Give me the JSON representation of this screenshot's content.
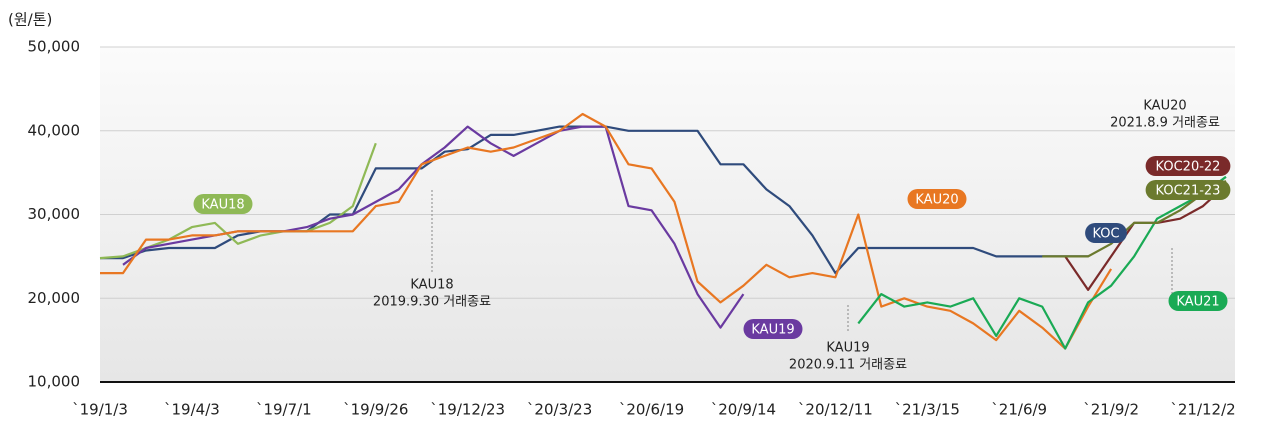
{
  "chart_data": {
    "type": "line",
    "y_unit_label": "(원/톤)",
    "categories": [
      "`19/1/3",
      null,
      null,
      null,
      "`19/4/3",
      null,
      null,
      null,
      "`19/7/1",
      null,
      null,
      null,
      "`19/9/26",
      null,
      null,
      null,
      "`19/12/23",
      null,
      null,
      null,
      "`20/3/23",
      null,
      null,
      null,
      "`20/6/19",
      null,
      null,
      null,
      "`20/9/14",
      null,
      null,
      null,
      "`20/12/11",
      null,
      null,
      null,
      "`21/3/15",
      null,
      null,
      null,
      "`21/6/9",
      null,
      null,
      null,
      "`21/9/2",
      null,
      null,
      null,
      "`21/12/2",
      null
    ],
    "ylim": [
      10000,
      50000
    ],
    "yticks": [
      {
        "value": 10000,
        "label": "10,000"
      },
      {
        "value": 20000,
        "label": "20,000"
      },
      {
        "value": 30000,
        "label": "30,000"
      },
      {
        "value": 40000,
        "label": "40,000"
      },
      {
        "value": 50000,
        "label": "50,000"
      }
    ],
    "grid": true,
    "series": [
      {
        "name": "KOC",
        "color": "#2f4b7c",
        "values": [
          24800,
          24800,
          25700,
          26000,
          26000,
          26000,
          27500,
          28000,
          28000,
          28000,
          30000,
          30000,
          35500,
          35500,
          35500,
          37500,
          37800,
          39500,
          39500,
          40000,
          40500,
          40500,
          40500,
          40000,
          40000,
          40000,
          40000,
          36000,
          36000,
          33000,
          31000,
          27500,
          23000,
          26000,
          26000,
          26000,
          26000,
          26000,
          26000,
          25000,
          25000,
          25000,
          25000,
          25000,
          null,
          null,
          null,
          null,
          null,
          null
        ]
      },
      {
        "name": "KAU18",
        "color": "#8fb956",
        "values": [
          24800,
          25000,
          26000,
          27000,
          28500,
          29000,
          26500,
          27500,
          28000,
          28000,
          29000,
          31000,
          38500,
          null,
          null,
          null,
          null,
          null,
          null,
          null,
          null,
          null,
          null,
          null,
          null,
          null,
          null,
          null,
          null,
          null,
          null,
          null,
          null,
          null,
          null,
          null,
          null,
          null,
          null,
          null,
          null,
          null,
          null,
          null,
          null,
          null,
          null,
          null,
          null,
          null
        ]
      },
      {
        "name": "KAU19",
        "color": "#6a3aa0",
        "values": [
          null,
          24000,
          26000,
          26500,
          27000,
          27500,
          28000,
          28000,
          28000,
          28500,
          29500,
          30000,
          31500,
          33000,
          36000,
          38000,
          40500,
          38500,
          37000,
          38500,
          40000,
          40500,
          40500,
          31000,
          30500,
          26500,
          20500,
          16500,
          20500,
          null,
          null,
          null,
          null,
          null,
          null,
          null,
          null,
          null,
          null,
          null,
          null,
          null,
          null,
          null,
          null,
          null,
          null,
          null,
          null,
          null
        ]
      },
      {
        "name": "KAU20",
        "color": "#e87722",
        "values": [
          23000,
          23000,
          27000,
          27000,
          27500,
          27500,
          28000,
          28000,
          28000,
          28000,
          28000,
          28000,
          31000,
          31500,
          36000,
          37000,
          38000,
          37500,
          38000,
          39000,
          40000,
          42000,
          40500,
          36000,
          35500,
          31500,
          22000,
          19500,
          21500,
          24000,
          22500,
          23000,
          22500,
          30000,
          19000,
          20000,
          19000,
          18500,
          17000,
          15000,
          18500,
          16500,
          14000,
          19000,
          23500,
          null,
          null,
          null,
          null,
          null
        ]
      },
      {
        "name": "KAU21",
        "color": "#1aaa55",
        "values": [
          null,
          null,
          null,
          null,
          null,
          null,
          null,
          null,
          null,
          null,
          null,
          null,
          null,
          null,
          null,
          null,
          null,
          null,
          null,
          null,
          null,
          null,
          null,
          null,
          null,
          null,
          null,
          null,
          null,
          null,
          null,
          null,
          null,
          17000,
          20500,
          19000,
          19500,
          19000,
          20000,
          15500,
          20000,
          19000,
          14000,
          19500,
          21500,
          25000,
          29500,
          31000,
          32500,
          34500
        ]
      },
      {
        "name": "KOC20-22",
        "color": "#7a2a2a",
        "values": [
          null,
          null,
          null,
          null,
          null,
          null,
          null,
          null,
          null,
          null,
          null,
          null,
          null,
          null,
          null,
          null,
          null,
          null,
          null,
          null,
          null,
          null,
          null,
          null,
          null,
          null,
          null,
          null,
          null,
          null,
          null,
          null,
          null,
          null,
          null,
          null,
          null,
          null,
          null,
          null,
          null,
          null,
          25000,
          21000,
          25000,
          29000,
          29000,
          29500,
          31000,
          33500
        ]
      },
      {
        "name": "KOC21-23",
        "color": "#6b7a2e",
        "values": [
          null,
          null,
          null,
          null,
          null,
          null,
          null,
          null,
          null,
          null,
          null,
          null,
          null,
          null,
          null,
          null,
          null,
          null,
          null,
          null,
          null,
          null,
          null,
          null,
          null,
          null,
          null,
          null,
          null,
          null,
          null,
          null,
          null,
          null,
          null,
          null,
          null,
          null,
          null,
          null,
          null,
          25000,
          25000,
          25000,
          26500,
          29000,
          29000,
          30500,
          32500,
          34000
        ]
      }
    ],
    "annotations": [
      {
        "lines": [
          "KAU18",
          "2019.9.30 거래종료"
        ]
      },
      {
        "lines": [
          "KAU19",
          "2020.9.11 거래종료"
        ]
      },
      {
        "lines": [
          "KAU20",
          "2021.8.9 거래종료"
        ]
      }
    ]
  }
}
